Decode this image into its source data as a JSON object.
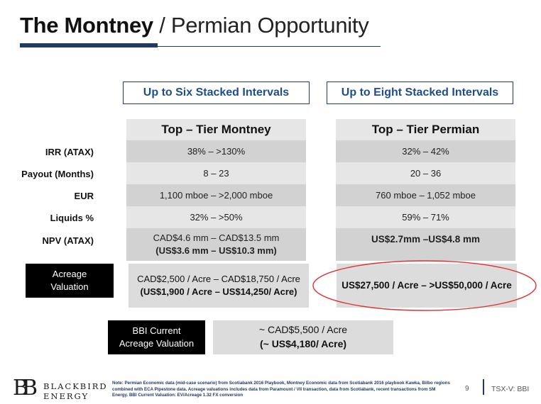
{
  "title": {
    "bold": "The Montney",
    "rest": " / Permian Opportunity"
  },
  "montney": {
    "header": "Up to Six Stacked Intervals",
    "col_title": "Top – Tier Montney",
    "irr": "38% – >130%",
    "payout": "8 – 23",
    "eur": "1,100 mboe  – >2,000 mboe",
    "liquids": "32% – >50%",
    "npv_line1": "CAD$4.6 mm – CAD$13.5 mm",
    "npv_line2": "(US$3.6 mm – US$10.3 mm)",
    "acreage_line1": "CAD$2,500  / Acre – CAD$18,750 / Acre",
    "acreage_line2": "(US$1,900 / Acre – US$14,250/ Acre)"
  },
  "permian": {
    "header": "Up to Eight Stacked Intervals",
    "col_title": "Top – Tier Permian",
    "irr": "32% – 42%",
    "payout": "20 – 36",
    "eur": "760 mboe  – 1,052 mboe",
    "liquids": "59% – 71%",
    "npv": "US$2.7mm –US$4.8 mm",
    "acreage": "US$27,500 / Acre – >US$50,000 / Acre"
  },
  "row_labels": {
    "irr": "IRR (ATAX)",
    "payout": "Payout (Months)",
    "eur": "EUR",
    "liquids": "Liquids %",
    "npv": "NPV (ATAX)"
  },
  "acreage_label_1": "Acreage",
  "acreage_label_2": "Valuation",
  "bbi_label_1": "BBI Current",
  "bbi_label_2": "Acreage Valuation",
  "bbi_value_1": "~ CAD$5,500 / Acre",
  "bbi_value_2": "(~ US$4,180/ Acre)",
  "footer": {
    "note": "Note: Permian Economic data (mid-case scenario) from Scotiabank 2016 Playbook, Montney Economic data from Scotiabank 2016 playbook Kawka, Bilbo regions combined with ECA Pipestone data. Acreage valuations includes data from Paramount / VII transaction, data from Scotiabank, recent transactions from SM Energy. BBI Current Valuation: EV/Acreage 1.32 FX conversion",
    "page": "9",
    "ticker": "TSX-V: BBI",
    "logo_mark": "BB",
    "logo_line1": "BLACKBIRD",
    "logo_line2": "ENERGY"
  },
  "colors": {
    "navy": "#1f3a68",
    "accent_blue": "#1f4e8c",
    "highlight_red": "#e03030",
    "cell_grey": "#e6e6e6",
    "stripe_grey": "#d2d2d2"
  }
}
